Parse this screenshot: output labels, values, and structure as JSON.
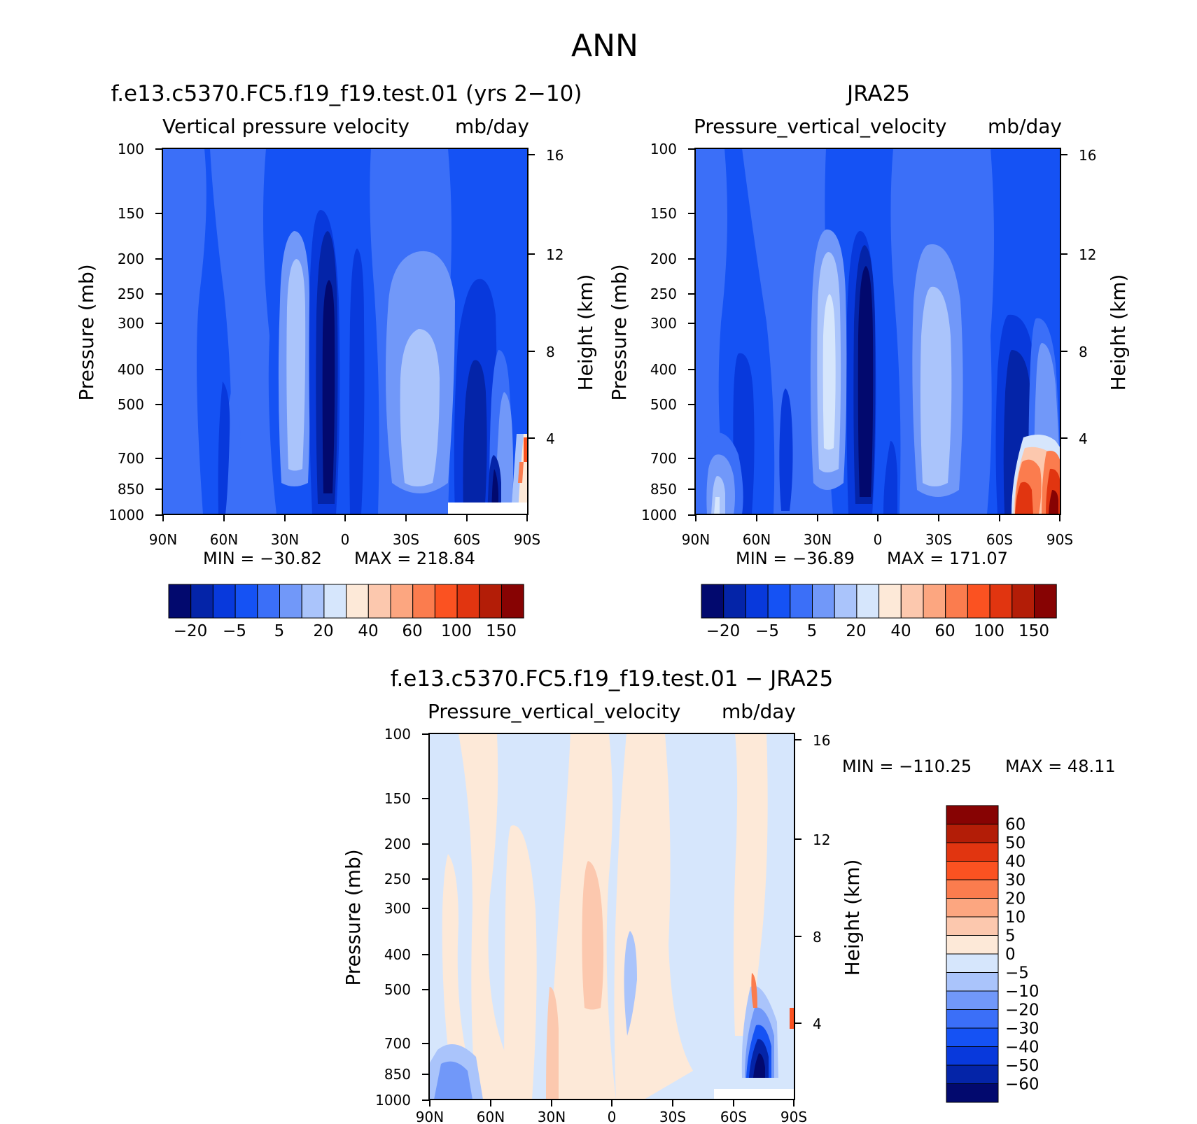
{
  "page": {
    "title": "ANN"
  },
  "colors": {
    "blues": [
      "#02096e",
      "#0424a8",
      "#0839dc",
      "#1552f4",
      "#3b6ff8",
      "#7198f9",
      "#aac4fb",
      "#d6e6fc"
    ],
    "reds": [
      "#fde9d8",
      "#fcc8ae",
      "#fca680",
      "#fb7c4e",
      "#fb5221",
      "#e13510",
      "#b31d07",
      "#870303"
    ],
    "diff": [
      "#02096e",
      "#0424a8",
      "#0839dc",
      "#1552f4",
      "#3b6ff8",
      "#7198f9",
      "#aac4fb",
      "#d6e6fc",
      "#fde9d8",
      "#fcc8ae",
      "#fca680",
      "#fb7c4e",
      "#fb5221",
      "#e13510",
      "#b31d07",
      "#870303"
    ]
  },
  "chart_data": [
    {
      "type": "contour",
      "id": "model",
      "title": "f.e13.c5370.FC5.f19_f19.test.01 (yrs 2−10)",
      "subtitle_left": "Vertical pressure velocity",
      "subtitle_right": "mb/day",
      "ylabel": "Pressure (mb)",
      "y2label": "Height (km)",
      "xticks": [
        "90N",
        "60N",
        "30N",
        "0",
        "30S",
        "60S",
        "90S"
      ],
      "yticks": [
        "100",
        "150",
        "200",
        "250",
        "300",
        "400",
        "500",
        "700",
        "850",
        "1000"
      ],
      "y2ticks": [
        "16",
        "12",
        "8",
        "4"
      ],
      "min_label": "MIN = −30.82",
      "max_label": "MAX = 218.84",
      "min": -30.82,
      "max": 218.84,
      "colorbar_labels": [
        "−20",
        "−5",
        "5",
        "20",
        "40",
        "60",
        "100",
        "150"
      ]
    },
    {
      "type": "contour",
      "id": "obs",
      "title": "JRA25",
      "subtitle_left": "Pressure_vertical_velocity",
      "subtitle_right": "mb/day",
      "ylabel": "Pressure (mb)",
      "y2label": "Height (km)",
      "xticks": [
        "90N",
        "60N",
        "30N",
        "0",
        "30S",
        "60S",
        "90S"
      ],
      "yticks": [
        "100",
        "150",
        "200",
        "250",
        "300",
        "400",
        "500",
        "700",
        "850",
        "1000"
      ],
      "y2ticks": [
        "16",
        "12",
        "8",
        "4"
      ],
      "min_label": "MIN = −36.89",
      "max_label": "MAX = 171.07",
      "min": -36.89,
      "max": 171.07,
      "colorbar_labels": [
        "−20",
        "−5",
        "5",
        "20",
        "40",
        "60",
        "100",
        "150"
      ]
    },
    {
      "type": "contour",
      "id": "diff",
      "title": "f.e13.c5370.FC5.f19_f19.test.01 − JRA25",
      "subtitle_left": "Pressure_vertical_velocity",
      "subtitle_right": "mb/day",
      "ylabel": "Pressure (mb)",
      "y2label": "Height (km)",
      "xticks": [
        "90N",
        "60N",
        "30N",
        "0",
        "30S",
        "60S",
        "90S"
      ],
      "yticks": [
        "100",
        "150",
        "200",
        "250",
        "300",
        "400",
        "500",
        "700",
        "850",
        "1000"
      ],
      "y2ticks": [
        "16",
        "12",
        "8",
        "4"
      ],
      "min_label": "MIN = −110.25",
      "max_label": "MAX = 48.11",
      "min": -110.25,
      "max": 48.11,
      "colorbar_labels": [
        "60",
        "50",
        "40",
        "30",
        "20",
        "10",
        "5",
        "0",
        "−5",
        "−10",
        "−20",
        "−30",
        "−40",
        "−50",
        "−60"
      ]
    }
  ]
}
